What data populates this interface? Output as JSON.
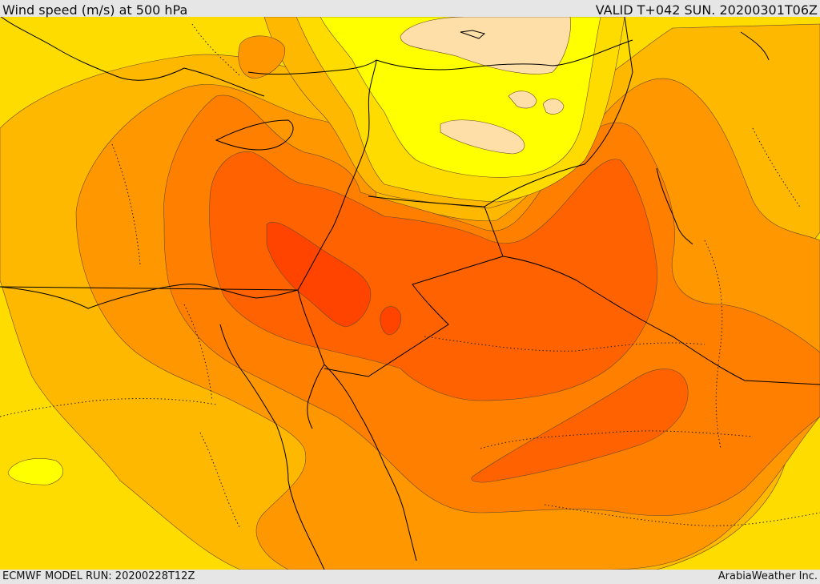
{
  "header": {
    "title": "Wind speed (m/s) at 500 hPa",
    "valid_time": "VALID T+042 SUN. 20200301T06Z"
  },
  "footer": {
    "model_run": "ECMWF MODEL RUN: 20200228T12Z",
    "credit": "ArabiaWeather Inc."
  },
  "map": {
    "variable": "wind speed",
    "level": "500 hPa",
    "units": "m/s",
    "colors": {
      "band_1": "#ffdfa8",
      "band_2": "#ffff00",
      "band_3": "#ffdc00",
      "band_4": "#ffb800",
      "band_5": "#ff9800",
      "band_6": "#ff7f00",
      "band_7": "#ff6200",
      "band_8": "#ff4400",
      "coastline": "#000000"
    }
  }
}
